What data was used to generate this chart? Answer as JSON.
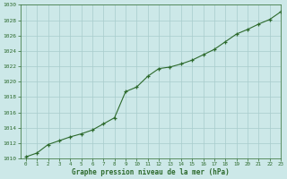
{
  "x": [
    0,
    1,
    2,
    3,
    4,
    5,
    6,
    7,
    8,
    9,
    10,
    11,
    12,
    13,
    14,
    15,
    16,
    17,
    18,
    19,
    20,
    21,
    22,
    23
  ],
  "y": [
    1010.2,
    1010.7,
    1011.8,
    1012.3,
    1012.8,
    1013.2,
    1013.7,
    1014.5,
    1015.3,
    1018.7,
    1019.3,
    1020.7,
    1021.7,
    1021.9,
    1022.3,
    1022.8,
    1023.5,
    1024.2,
    1025.2,
    1026.2,
    1026.8,
    1027.5,
    1028.1,
    1029.1
  ],
  "xlim": [
    -0.5,
    23
  ],
  "ylim": [
    1010,
    1030
  ],
  "yticks": [
    1010,
    1012,
    1014,
    1016,
    1018,
    1020,
    1022,
    1024,
    1026,
    1028,
    1030
  ],
  "xticks": [
    0,
    1,
    2,
    3,
    4,
    5,
    6,
    7,
    8,
    9,
    10,
    11,
    12,
    13,
    14,
    15,
    16,
    17,
    18,
    19,
    20,
    21,
    22,
    23
  ],
  "xlabel": "Graphe pression niveau de la mer (hPa)",
  "line_color": "#2d6a2d",
  "marker": "+",
  "bg_color": "#cce8e8",
  "grid_color": "#a8cccc",
  "axis_color": "#2d6a2d",
  "tick_color": "#2d6a2d",
  "label_color": "#2d6a2d"
}
